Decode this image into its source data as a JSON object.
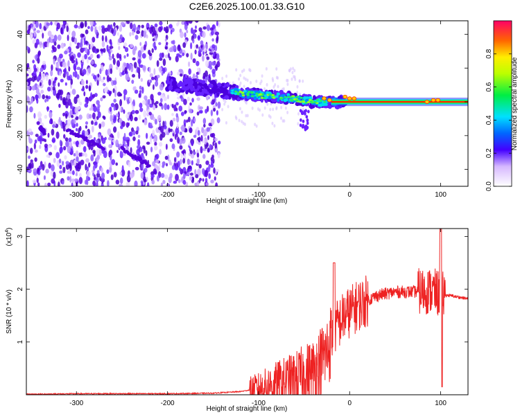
{
  "title": "C2E6.2025.100.01.33.G10",
  "top_panel": {
    "xlabel": "Height of straight line (km)",
    "ylabel": "Frequency (Hz)",
    "colorbar_label": "Normalized spectral amplitude",
    "x_ticks": [
      "-300",
      "-200",
      "-100",
      "0",
      "100"
    ],
    "y_ticks": [
      "40",
      "20",
      "0",
      "-20",
      "-40"
    ],
    "colorbar_ticks": [
      "0.0",
      "0.2",
      "0.4",
      "0.6",
      "0.8"
    ]
  },
  "bottom_panel": {
    "xlabel": "Height of straight line (km)",
    "ylabel": "SNR (10 * v/v)",
    "y_multiplier": "(x10",
    "y_multiplier_exp": "4",
    "y_multiplier_close": ")",
    "x_ticks": [
      "-300",
      "-200",
      "-100",
      "0",
      "100"
    ],
    "y_ticks": [
      "3",
      "2",
      "1"
    ]
  },
  "colors": {
    "line": "#ee2222",
    "trace": "#5500dd"
  },
  "chart_data": [
    {
      "type": "heatmap",
      "xlim": [
        -355,
        130
      ],
      "ylim": [
        -50,
        48
      ],
      "x_tick_values": [
        -300,
        -200,
        -100,
        0,
        100
      ],
      "y_tick_values": [
        40,
        20,
        0,
        -20,
        -40
      ],
      "colorbar_range": [
        0,
        1
      ],
      "colorbar_tick_values": [
        0.0,
        0.2,
        0.4,
        0.6,
        0.8
      ],
      "ridge": {
        "x": [
          -200,
          -170,
          -140,
          -120,
          -100,
          -80,
          -60,
          -40,
          -20,
          0,
          20,
          100,
          130
        ],
        "y": [
          11,
          9,
          7,
          5,
          4,
          3,
          2,
          0,
          0,
          0,
          0,
          0,
          0
        ]
      },
      "secondary_streaks": [
        {
          "x": [
            -310,
            -270
          ],
          "y": [
            -17,
            -27
          ]
        },
        {
          "x": [
            -250,
            -220
          ],
          "y": [
            -28,
            -38
          ]
        },
        {
          "x": [
            -340,
            -335
          ],
          "y": [
            -15,
            -18
          ]
        }
      ]
    },
    {
      "type": "line",
      "xlim": [
        -355,
        130
      ],
      "ylim": [
        0,
        3.15
      ],
      "y_scale": 10000,
      "x_tick_values": [
        -300,
        -200,
        -100,
        0,
        100
      ],
      "y_tick_values": [
        3,
        2,
        1
      ],
      "x": [
        -355,
        -300,
        -250,
        -200,
        -150,
        -120,
        -100,
        -80,
        -60,
        -40,
        -25,
        -15,
        -5,
        10,
        30,
        50,
        70,
        90,
        100,
        110,
        130
      ],
      "y": [
        0.01,
        0.02,
        0.02,
        0.02,
        0.03,
        0.06,
        0.12,
        0.22,
        0.3,
        0.45,
        0.8,
        1.3,
        1.5,
        1.7,
        1.88,
        1.95,
        1.95,
        1.97,
        1.9,
        1.88,
        1.82
      ]
    }
  ]
}
